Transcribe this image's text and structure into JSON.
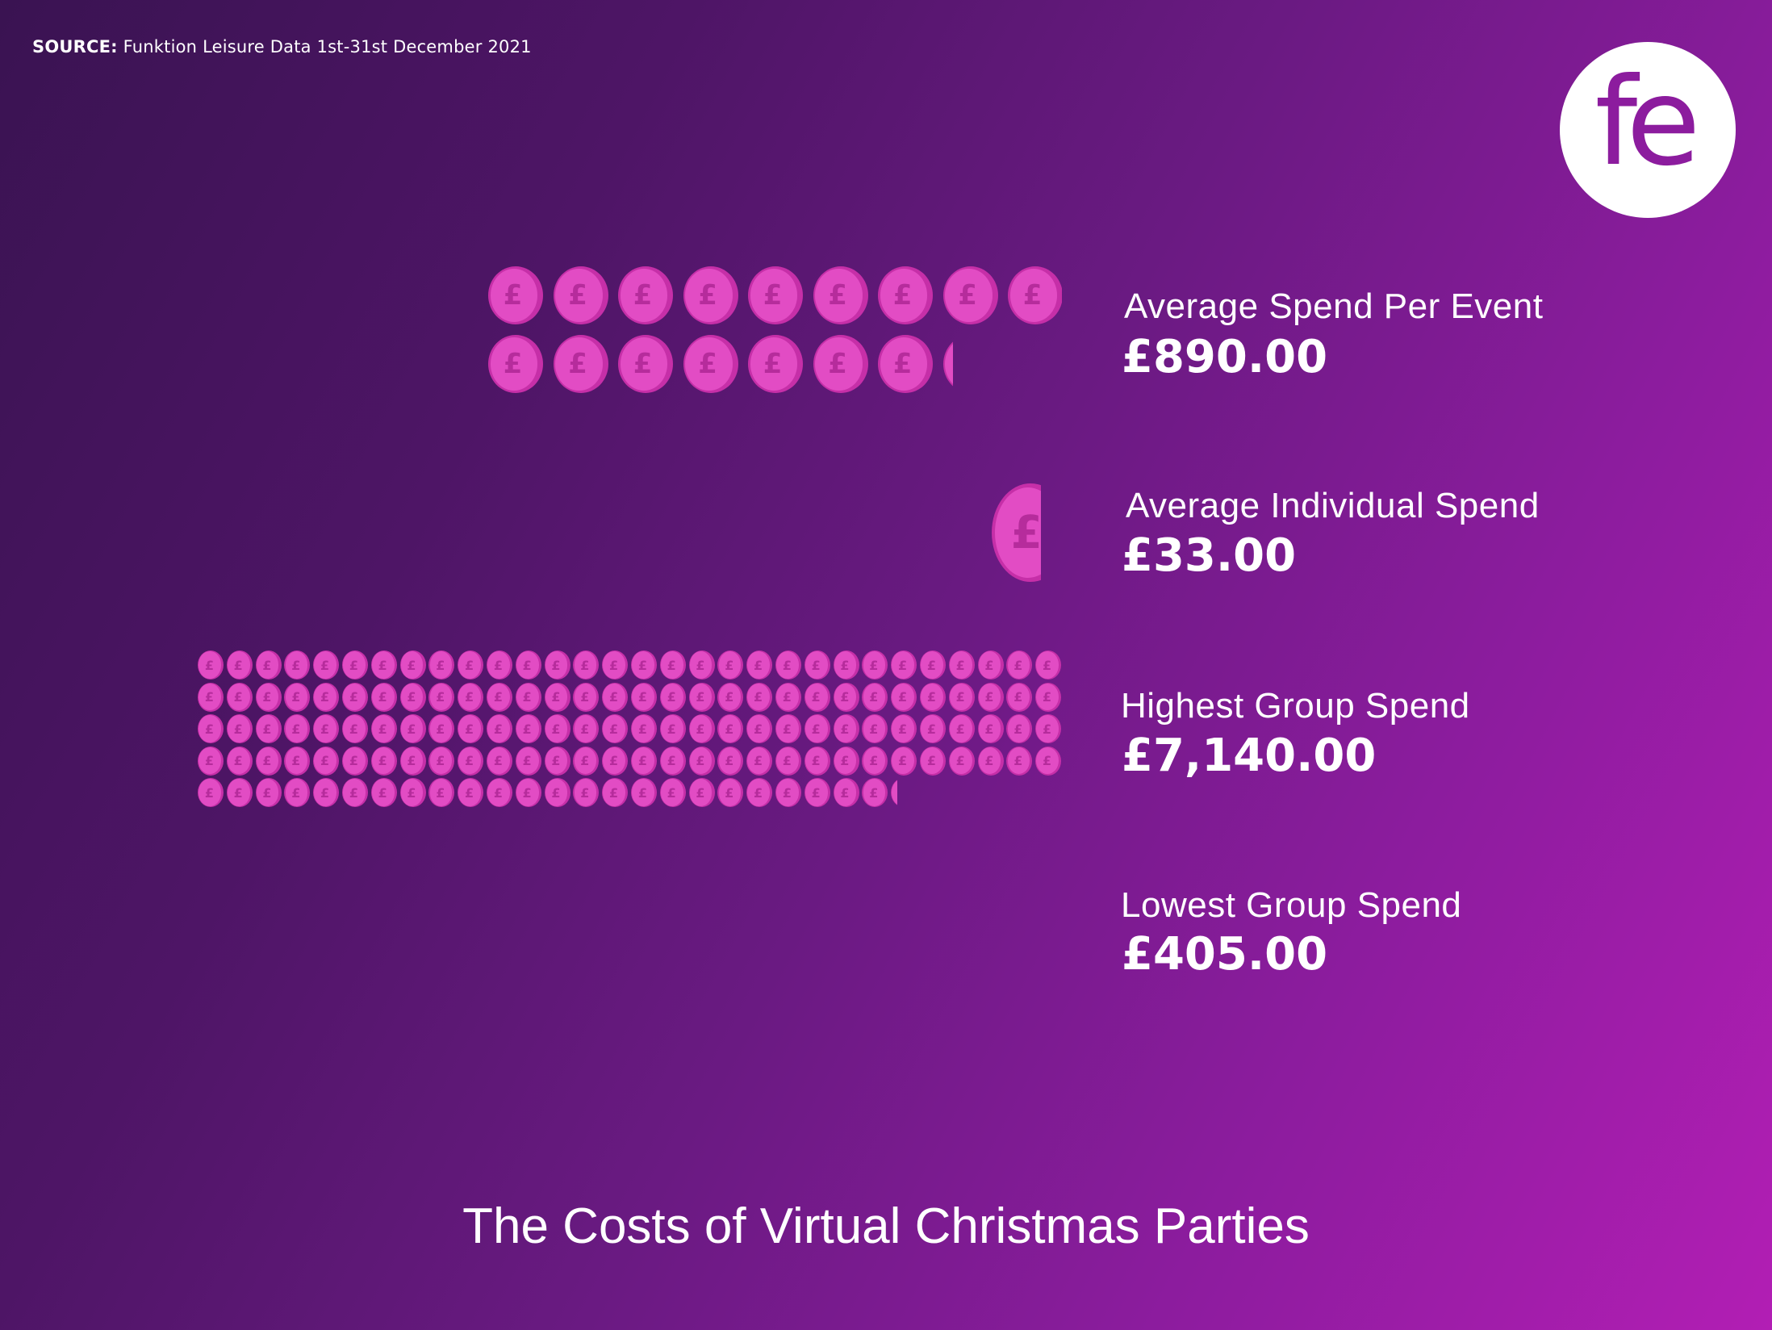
{
  "source": {
    "prefix": "SOURCE:",
    "text": "Funktion Leisure Data 1st-31st December 2021"
  },
  "logo": {
    "text": "fe"
  },
  "colors": {
    "coin": "#e24cc4",
    "coin_rim": "#c62fa8",
    "coin_symbol": "#b62c9c",
    "logo": "#8c1c9e"
  },
  "chart_data": {
    "type": "pictogram",
    "icon": "pound-coin-icon",
    "title": "The Costs of Virtual Christmas Parties",
    "categories": [
      "Average Spend Per Event",
      "Average Individual Spend",
      "Highest Group Spend",
      "Lowest Group Spend"
    ],
    "values": [
      890,
      33,
      7140,
      405
    ],
    "value_labels": [
      "£890.00",
      "£33.00",
      "£7,140.00",
      "£405.00"
    ]
  }
}
